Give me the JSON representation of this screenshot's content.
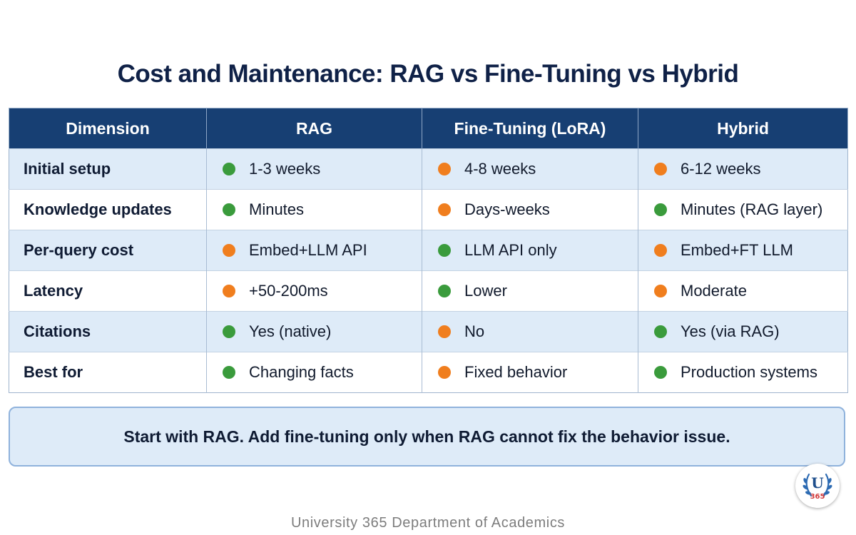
{
  "title": "Cost and Maintenance: RAG vs Fine-Tuning vs Hybrid",
  "table": {
    "headers": [
      "Dimension",
      "RAG",
      "Fine-Tuning (LoRA)",
      "Hybrid"
    ],
    "rows": [
      {
        "dimension": "Initial setup",
        "cells": [
          {
            "text": "1-3 weeks",
            "status": "good"
          },
          {
            "text": "4-8 weeks",
            "status": "warn"
          },
          {
            "text": "6-12 weeks",
            "status": "warn"
          }
        ]
      },
      {
        "dimension": "Knowledge updates",
        "cells": [
          {
            "text": "Minutes",
            "status": "good"
          },
          {
            "text": "Days-weeks",
            "status": "warn"
          },
          {
            "text": "Minutes (RAG layer)",
            "status": "good"
          }
        ]
      },
      {
        "dimension": "Per-query cost",
        "cells": [
          {
            "text": "Embed+LLM API",
            "status": "warn"
          },
          {
            "text": "LLM API only",
            "status": "good"
          },
          {
            "text": "Embed+FT LLM",
            "status": "warn"
          }
        ]
      },
      {
        "dimension": "Latency",
        "cells": [
          {
            "text": "+50-200ms",
            "status": "warn"
          },
          {
            "text": "Lower",
            "status": "good"
          },
          {
            "text": "Moderate",
            "status": "warn"
          }
        ]
      },
      {
        "dimension": "Citations",
        "cells": [
          {
            "text": "Yes (native)",
            "status": "good"
          },
          {
            "text": "No",
            "status": "warn"
          },
          {
            "text": "Yes (via RAG)",
            "status": "good"
          }
        ]
      },
      {
        "dimension": "Best for",
        "cells": [
          {
            "text": "Changing facts",
            "status": "good"
          },
          {
            "text": "Fixed behavior",
            "status": "warn"
          },
          {
            "text": "Production systems",
            "status": "good"
          }
        ]
      }
    ]
  },
  "status_colors": {
    "good": "#3a9b3c",
    "warn": "#f07e1e"
  },
  "callout": "Start with RAG. Add fine-tuning only when RAG cannot fix the behavior issue.",
  "badge": {
    "letter": "U",
    "number": "365",
    "icon": "university-laurel-logo"
  },
  "footer": "University 365 Department of Academics"
}
